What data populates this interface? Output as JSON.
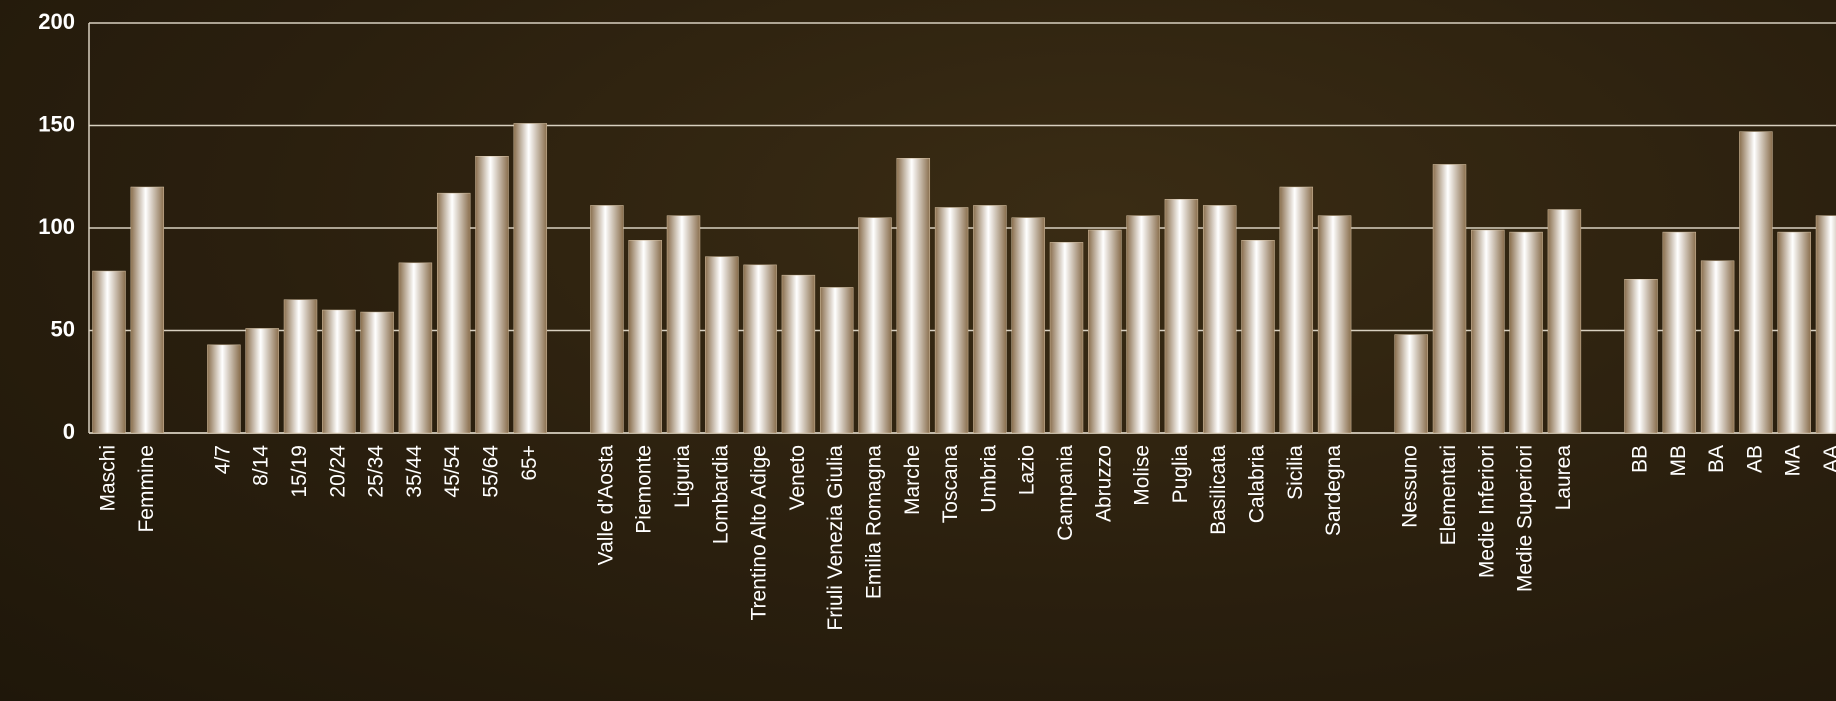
{
  "chart_data": {
    "type": "bar",
    "categories": [
      "Maschi",
      "Femmine",
      null,
      "4/7",
      "8/14",
      "15/19",
      "20/24",
      "25/34",
      "35/44",
      "45/54",
      "55/64",
      "65+",
      null,
      "Valle d'Aosta",
      "Piemonte",
      "Liguria",
      "Lombardia",
      "Trentino Alto Adige",
      "Veneto",
      "Friuli Venezia Giulia",
      "Emilia Romagna",
      "Marche",
      "Toscana",
      "Umbria",
      "Lazio",
      "Campania",
      "Abruzzo",
      "Molise",
      "Puglia",
      "Basilicata",
      "Calabria",
      "Sicilia",
      "Sardegna",
      null,
      "Nessuno",
      "Elementari",
      "Medie Inferiori",
      "Medie Superiori",
      "Laurea",
      null,
      "BB",
      "MB",
      "BA",
      "AB",
      "MA",
      "AA"
    ],
    "values": [
      79,
      120,
      null,
      43,
      51,
      65,
      60,
      59,
      83,
      117,
      135,
      151,
      null,
      111,
      94,
      106,
      86,
      82,
      77,
      71,
      105,
      134,
      110,
      111,
      105,
      93,
      99,
      106,
      114,
      111,
      94,
      120,
      106,
      null,
      48,
      131,
      99,
      98,
      109,
      null,
      75,
      98,
      84,
      147,
      98,
      106
    ],
    "color": "#d8c3a5",
    "ylim": [
      0,
      200
    ],
    "yticks": [
      0,
      50,
      100,
      150,
      200
    ],
    "grid": true
  }
}
